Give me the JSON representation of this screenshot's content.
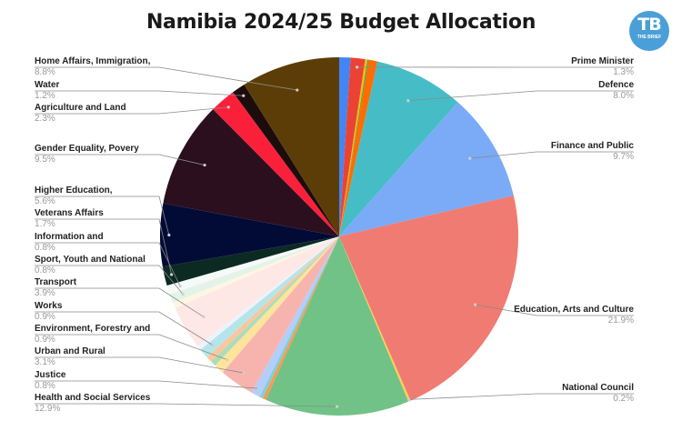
{
  "header": {
    "title": "Namibia 2024/25 Budget Allocation",
    "logo_text": "TB",
    "logo_subtext": "THE BRIEF"
  },
  "chart_data": {
    "type": "pie",
    "title": "Namibia 2024/25 Budget Allocation",
    "start_angle": "12 o'clock, clockwise",
    "slices": [
      {
        "label": "",
        "value": 1.0,
        "color": "#4285f4",
        "labeled": false
      },
      {
        "label": "Prime Minister",
        "value": 1.3,
        "color": "#ea4335",
        "labeled": true
      },
      {
        "label": "",
        "value": 0.2,
        "color": "#fbbc04",
        "labeled": false
      },
      {
        "label": "",
        "value": 0.1,
        "color": "#34a853",
        "labeled": false
      },
      {
        "label": "",
        "value": 0.8,
        "color": "#ff6d01",
        "labeled": false
      },
      {
        "label": "Defence",
        "value": 8.0,
        "color": "#46bdc6",
        "labeled": true
      },
      {
        "label": "Finance and Public",
        "value": 9.7,
        "color": "#7baaf7",
        "labeled": true
      },
      {
        "label": "Education, Arts and Culture",
        "value": 21.9,
        "color": "#f07b72",
        "labeled": true
      },
      {
        "label": "National Council",
        "value": 0.2,
        "color": "#fcd04f",
        "labeled": true
      },
      {
        "label": "Health and Social Services",
        "value": 12.9,
        "color": "#71c287",
        "labeled": true
      },
      {
        "label": "",
        "value": 0.3,
        "color": "#ff994d",
        "labeled": false
      },
      {
        "label": "",
        "value": 0.3,
        "color": "#7ed1d7",
        "labeled": false
      },
      {
        "label": "Justice",
        "value": 0.8,
        "color": "#b3cefb",
        "labeled": true
      },
      {
        "label": "Urban and Rural",
        "value": 3.1,
        "color": "#f7b4ae",
        "labeled": true
      },
      {
        "label": "Environment, Forestry and",
        "value": 0.9,
        "color": "#fde49b",
        "labeled": true
      },
      {
        "label": "",
        "value": 0.5,
        "color": "#aedcba",
        "labeled": false
      },
      {
        "label": "",
        "value": 0.5,
        "color": "#ffc599",
        "labeled": false
      },
      {
        "label": "Works",
        "value": 0.9,
        "color": "#b5e5e8",
        "labeled": true
      },
      {
        "label": "",
        "value": 0.4,
        "color": "#ecf3fe",
        "labeled": false
      },
      {
        "label": "Transport",
        "value": 3.9,
        "color": "#fde8e6",
        "labeled": true
      },
      {
        "label": "",
        "value": 0.5,
        "color": "#fef6e1",
        "labeled": false
      },
      {
        "label": "Sport, Youth and National",
        "value": 0.8,
        "color": "#e3f3e7",
        "labeled": true
      },
      {
        "label": "Information and",
        "value": 0.8,
        "color": "#f5faf8",
        "labeled": true
      },
      {
        "label": "Veterans Affairs",
        "value": 1.7,
        "color": "#0b2a22",
        "labeled": true
      },
      {
        "label": "Higher Education,",
        "value": 5.6,
        "color": "#020b36",
        "labeled": true
      },
      {
        "label": "Gender Equality, Povery",
        "value": 9.5,
        "color": "#2b0f1e",
        "labeled": true
      },
      {
        "label": "Agriculture and Land",
        "value": 2.3,
        "color": "#fb2039",
        "labeled": true
      },
      {
        "label": "Water",
        "value": 1.2,
        "color": "#1c0c0c",
        "labeled": true
      },
      {
        "label": "Home Affairs, Immigration,",
        "value": 8.8,
        "color": "#5c3d08",
        "labeled": true
      }
    ]
  },
  "labels_left": [
    {
      "name": "Home Affairs, Immigration,",
      "pct": "8.8%"
    },
    {
      "name": "Water",
      "pct": "1.2%"
    },
    {
      "name": "Agriculture and Land",
      "pct": "2.3%"
    },
    {
      "name": "Gender Equality, Povery",
      "pct": "9.5%"
    },
    {
      "name": "Higher Education,",
      "pct": "5.6%"
    },
    {
      "name": "Veterans Affairs",
      "pct": "1.7%"
    },
    {
      "name": "Information and",
      "pct": "0.8%"
    },
    {
      "name": "Sport, Youth and National",
      "pct": "0.8%"
    },
    {
      "name": "Transport",
      "pct": "3.9%"
    },
    {
      "name": "Works",
      "pct": "0.9%"
    },
    {
      "name": "Environment, Forestry and",
      "pct": "0.9%"
    },
    {
      "name": "Urban and Rural",
      "pct": "3.1%"
    },
    {
      "name": "Justice",
      "pct": "0.8%"
    },
    {
      "name": "Health and Social Services",
      "pct": "12.9%"
    }
  ],
  "labels_right": [
    {
      "name": "Prime Minister",
      "pct": "1.3%"
    },
    {
      "name": "Defence",
      "pct": "8.0%"
    },
    {
      "name": "Finance and Public",
      "pct": "9.7%"
    },
    {
      "name": "Education, Arts and Culture",
      "pct": "21.9%"
    },
    {
      "name": "National Council",
      "pct": "0.2%"
    }
  ]
}
